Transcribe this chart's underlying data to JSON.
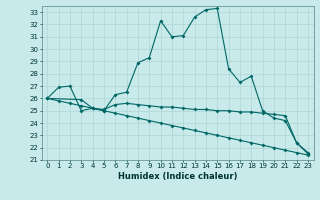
{
  "title": "",
  "xlabel": "Humidex (Indice chaleur)",
  "xlim": [
    -0.5,
    23.5
  ],
  "ylim": [
    21,
    33.5
  ],
  "yticks": [
    21,
    22,
    23,
    24,
    25,
    26,
    27,
    28,
    29,
    30,
    31,
    32,
    33
  ],
  "xticks": [
    0,
    1,
    2,
    3,
    4,
    5,
    6,
    7,
    8,
    9,
    10,
    11,
    12,
    13,
    14,
    15,
    16,
    17,
    18,
    19,
    20,
    21,
    22,
    23
  ],
  "bg_color": "#c8eaea",
  "grid_color": "#aacccc",
  "line_color": "#006666",
  "line1_x": [
    0,
    1,
    2,
    3,
    4,
    5,
    6,
    7,
    8,
    9,
    10,
    11,
    12,
    13,
    14,
    15,
    16,
    17,
    18,
    19,
    20,
    21,
    22,
    23
  ],
  "line1_y": [
    26.0,
    26.9,
    27.0,
    25.0,
    25.2,
    25.0,
    26.3,
    26.5,
    28.9,
    29.3,
    32.3,
    31.0,
    31.1,
    32.6,
    33.2,
    33.3,
    28.4,
    27.3,
    27.8,
    25.0,
    24.4,
    24.2,
    22.4,
    21.6
  ],
  "line2_x": [
    0,
    3,
    4,
    5,
    6,
    7,
    8,
    9,
    10,
    11,
    12,
    13,
    14,
    15,
    16,
    17,
    18,
    19,
    20,
    21,
    22,
    23
  ],
  "line2_y": [
    26.0,
    25.9,
    25.2,
    25.1,
    25.5,
    25.6,
    25.5,
    25.4,
    25.3,
    25.3,
    25.2,
    25.1,
    25.1,
    25.0,
    25.0,
    24.9,
    24.9,
    24.8,
    24.7,
    24.6,
    22.4,
    21.5
  ],
  "line3_x": [
    0,
    1,
    2,
    3,
    4,
    5,
    6,
    7,
    8,
    9,
    10,
    11,
    12,
    13,
    14,
    15,
    16,
    17,
    18,
    19,
    20,
    21,
    22,
    23
  ],
  "line3_y": [
    26.0,
    25.8,
    25.6,
    25.4,
    25.2,
    25.0,
    24.8,
    24.6,
    24.4,
    24.2,
    24.0,
    23.8,
    23.6,
    23.4,
    23.2,
    23.0,
    22.8,
    22.6,
    22.4,
    22.2,
    22.0,
    21.8,
    21.6,
    21.4
  ]
}
